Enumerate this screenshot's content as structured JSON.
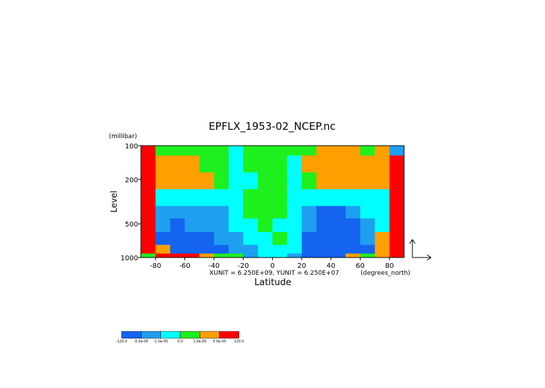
{
  "chart_data": {
    "type": "contour",
    "title": "EPFLX_1953-02_NCEP.nc",
    "xlabel": "Latitude",
    "ylabel": "Level",
    "ylabel_unit": "(millibar)",
    "xlabel_unit": "(degrees_north)",
    "annotation": "XUNIT = 6.250E+09, YUNIT = 6.250E+07",
    "x": [
      -85,
      -75,
      -65,
      -55,
      -45,
      -35,
      -25,
      -15,
      -5,
      5,
      15,
      25,
      35,
      45,
      55,
      65,
      75,
      85
    ],
    "y": [
      100,
      150,
      200,
      300,
      400,
      500,
      700,
      850,
      1000
    ],
    "z": [
      [
        8e-05,
        5e-06,
        5e-06,
        5e-06,
        5e-06,
        5e-06,
        -5e-06,
        5e-06,
        5e-06,
        5e-06,
        5e-06,
        5e-06,
        3e-05,
        3e-05,
        3e-05,
        5e-06,
        3e-05,
        -3e-05
      ],
      [
        8e-05,
        3e-05,
        3e-05,
        3e-05,
        5e-06,
        5e-06,
        -5e-06,
        5e-06,
        5e-06,
        5e-06,
        -5e-06,
        3e-05,
        3e-05,
        3e-05,
        3e-05,
        3e-05,
        3e-05,
        8e-05
      ],
      [
        8e-05,
        3e-05,
        3e-05,
        3e-05,
        3e-05,
        5e-06,
        -5e-06,
        -5e-06,
        5e-06,
        5e-06,
        -5e-06,
        5e-06,
        3e-05,
        3e-05,
        3e-05,
        3e-05,
        3e-05,
        8e-05
      ],
      [
        8e-05,
        -5e-06,
        -5e-06,
        -5e-06,
        -5e-06,
        -5e-06,
        -5e-06,
        5e-06,
        5e-06,
        5e-06,
        -5e-06,
        -5e-06,
        -5e-06,
        -5e-06,
        -5e-06,
        -5e-06,
        -5e-06,
        8e-05
      ],
      [
        8e-05,
        -3e-05,
        -3e-05,
        -3e-05,
        -3e-05,
        -3e-05,
        -5e-06,
        5e-06,
        5e-06,
        5e-06,
        -5e-06,
        -3e-05,
        -8e-05,
        -8e-05,
        -3e-05,
        -5e-06,
        -5e-06,
        8e-05
      ],
      [
        8e-05,
        -3e-05,
        -8e-05,
        -3e-05,
        -3e-05,
        -3e-05,
        -5e-06,
        -5e-06,
        5e-06,
        -5e-06,
        -5e-06,
        -3e-05,
        -8e-05,
        -8e-05,
        -8e-05,
        -3e-05,
        -5e-06,
        8e-05
      ],
      [
        8e-05,
        -8e-05,
        -8e-05,
        -8e-05,
        -8e-05,
        -3e-05,
        -3e-05,
        -5e-06,
        -5e-06,
        5e-06,
        -5e-06,
        -8e-05,
        -8e-05,
        -8e-05,
        -8e-05,
        -3e-05,
        3e-05,
        8e-05
      ],
      [
        8e-05,
        3e-05,
        -8e-05,
        -8e-05,
        -8e-05,
        -8e-05,
        -3e-05,
        -3e-05,
        -5e-06,
        -5e-06,
        -5e-06,
        -8e-05,
        -8e-05,
        -8e-05,
        -8e-05,
        -8e-05,
        3e-05,
        8e-05
      ],
      [
        5e-06,
        8e-05,
        8e-05,
        8e-05,
        3e-05,
        5e-06,
        5e-06,
        -3e-05,
        -5e-06,
        -5e-06,
        -3e-05,
        -8e-05,
        -8e-05,
        -8e-05,
        3e-05,
        5e-06,
        3e-05,
        8e-05
      ]
    ],
    "xlim": [
      -90,
      90
    ],
    "ylim": [
      1000,
      100
    ],
    "log_y": true,
    "xticks": [
      -80,
      -60,
      -40,
      -20,
      0,
      20,
      40,
      60,
      80
    ],
    "yticks": [
      100,
      200,
      500,
      1000
    ],
    "levels": [
      {
        "value": -120,
        "label": "-120.0"
      },
      {
        "value": -5e-05,
        "label": "-5.0e-05"
      },
      {
        "value": -1e-05,
        "label": "-1.0e-05"
      },
      {
        "value": 0,
        "label": "0.0"
      },
      {
        "value": 1e-05,
        "label": "1.0e-05"
      },
      {
        "value": 5e-05,
        "label": "5.0e-05"
      },
      {
        "value": 120,
        "label": "120.0"
      }
    ],
    "colors": [
      "#1464f0",
      "#1ea0f0",
      "#00ffff",
      "#1ef01e",
      "#ffa000",
      "#ff0000"
    ]
  }
}
